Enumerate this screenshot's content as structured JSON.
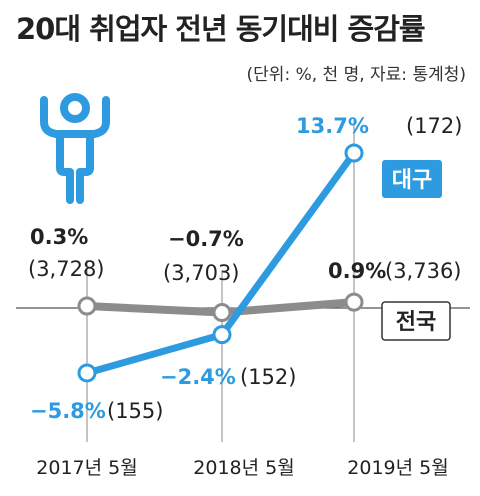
{
  "title": "20대 취업자 전년 동기대비 증감률",
  "source": "(단위: %, 천 명, 자료: 통계청)",
  "colors": {
    "daegu": "#2e9be0",
    "national": "#8c8c8c",
    "grid": "#555555",
    "text": "#222222"
  },
  "icon": "person-arms-raised-icon",
  "chart_data": {
    "type": "line",
    "categories": [
      "2017년 5월",
      "2018년 5월",
      "2019년 5월"
    ],
    "series": [
      {
        "name": "대구",
        "values": [
          -5.8,
          -2.4,
          13.7
        ],
        "counts": [
          "(155)",
          "(152)",
          "(172)"
        ],
        "value_labels": [
          "−5.8%",
          "−2.4%",
          "13.7%"
        ]
      },
      {
        "name": "전국",
        "values": [
          0.3,
          -0.7,
          0.9
        ],
        "counts": [
          "(3,728)",
          "(3,703)",
          "(3,736)"
        ],
        "value_labels": [
          "0.3%",
          "−0.7%",
          "0.9%"
        ]
      }
    ],
    "grid": false,
    "legend": "inline"
  }
}
